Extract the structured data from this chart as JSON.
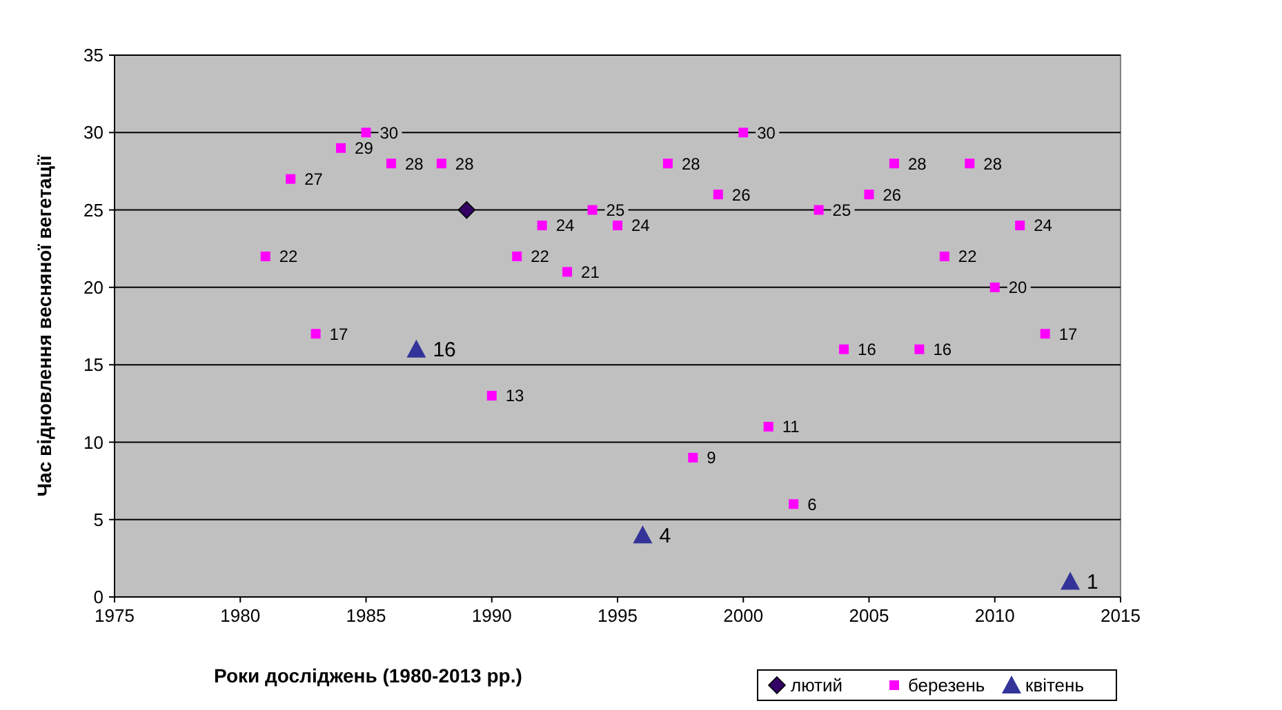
{
  "chart_data": {
    "type": "scatter",
    "xlabel": "Роки досліджень (1980-2013 рр.)",
    "ylabel": "Час відновлення весняної  вегетації",
    "xlim": [
      1975,
      2015
    ],
    "xticks": [
      1975,
      1980,
      1985,
      1990,
      1995,
      2000,
      2005,
      2010,
      2015
    ],
    "ylim": [
      0,
      35
    ],
    "yticks": [
      0,
      5,
      10,
      15,
      20,
      25,
      30,
      35
    ],
    "grid": "y",
    "legend": "bottom right",
    "series": [
      {
        "name": "лютий",
        "color": "#330066",
        "marker": "diamond",
        "x": [
          1989
        ],
        "values": [
          25
        ]
      },
      {
        "name": "березень",
        "color": "#ff00ff",
        "marker": "square",
        "x": [
          1981,
          1982,
          1983,
          1984,
          1985,
          1986,
          1988,
          1990,
          1991,
          1992,
          1993,
          1994,
          1995,
          1997,
          1998,
          1999,
          2000,
          2001,
          2002,
          2003,
          2004,
          2005,
          2006,
          2007,
          2008,
          2009,
          2010,
          2011,
          2012
        ],
        "values": [
          22,
          27,
          17,
          29,
          30,
          28,
          28,
          13,
          22,
          24,
          21,
          25,
          24,
          28,
          9,
          26,
          30,
          11,
          6,
          25,
          16,
          26,
          28,
          16,
          22,
          28,
          20,
          24,
          17
        ],
        "value_labels": [
          "22",
          "27",
          "17",
          "29",
          "30",
          "28",
          "28",
          "13",
          "22",
          "24",
          "21",
          "25",
          "24",
          "28",
          "9",
          "26",
          "30",
          "11",
          "6",
          "25",
          "16",
          "26",
          "28",
          "16",
          "22",
          "28",
          "20",
          "24",
          "17"
        ]
      },
      {
        "name": "квітень",
        "color": "#333399",
        "marker": "triangle",
        "x": [
          1987,
          1996,
          2013
        ],
        "values": [
          16,
          4,
          1
        ],
        "value_labels": [
          "16",
          "4",
          "1"
        ]
      }
    ]
  }
}
